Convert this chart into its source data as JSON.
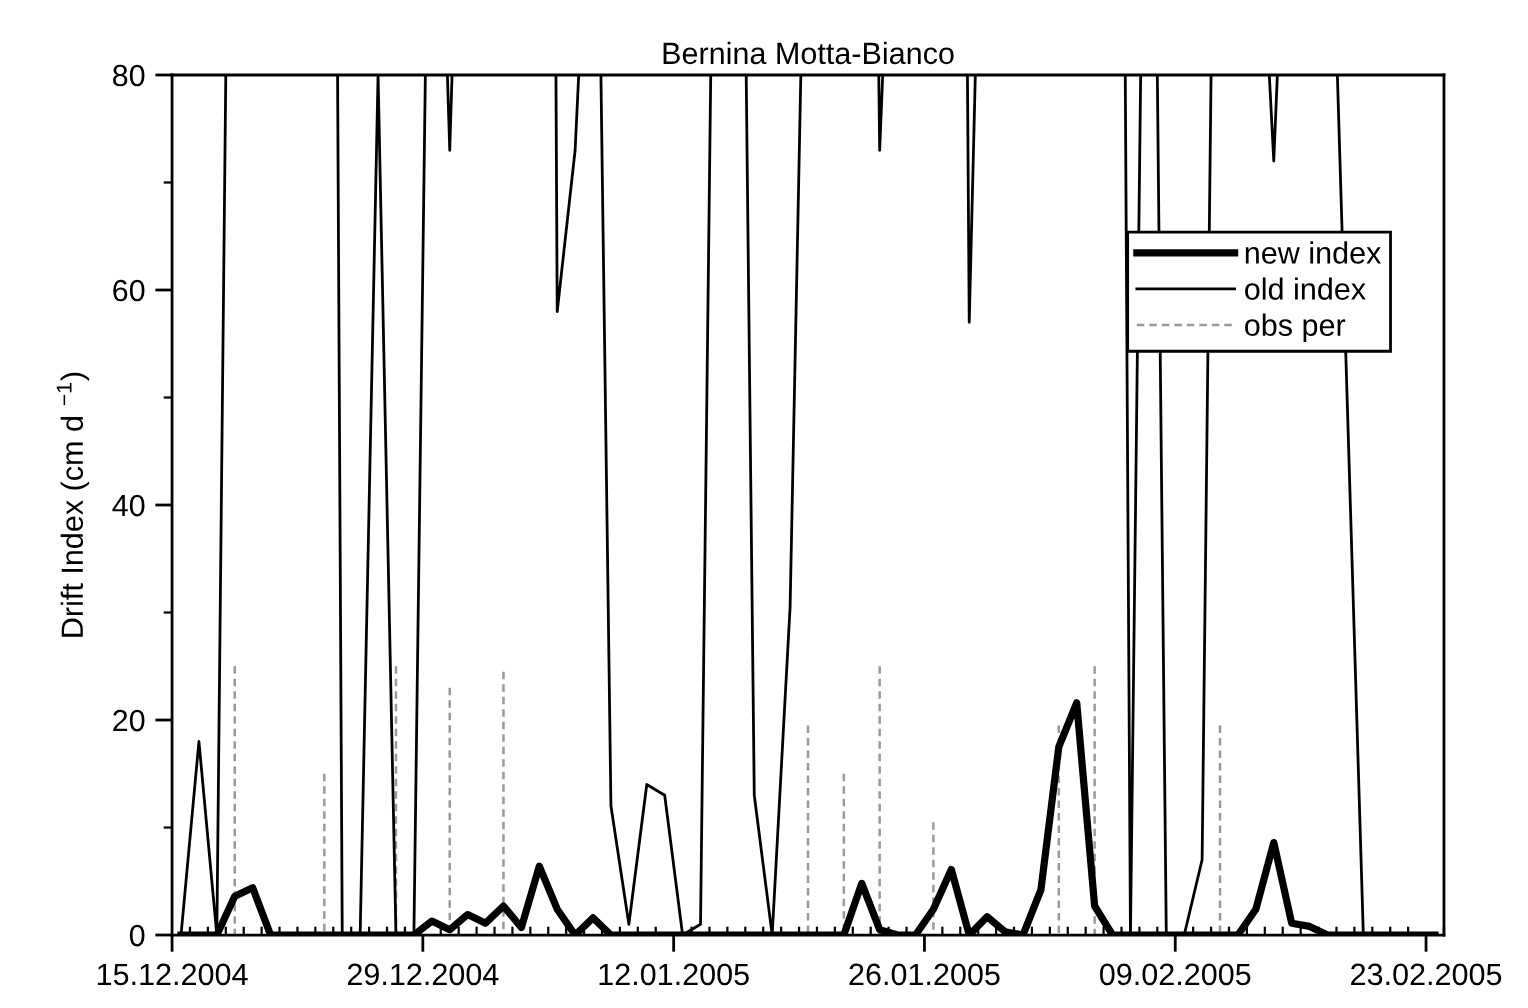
{
  "chart_data": {
    "type": "line",
    "title": "Bernina Motta-Bianco",
    "ylabel": "Drift Index (cm d $^{−1}$)",
    "xlim": [
      "2004-12-15",
      "2005-02-24"
    ],
    "ylim": [
      0,
      80
    ],
    "xticks": [
      {
        "value": "2004-12-15",
        "label": "15.12.2004"
      },
      {
        "value": "2004-12-29",
        "label": "29.12.2004"
      },
      {
        "value": "2005-01-12",
        "label": "12.01.2005"
      },
      {
        "value": "2005-01-26",
        "label": "26.01.2005"
      },
      {
        "value": "2005-02-09",
        "label": "09.02.2005"
      },
      {
        "value": "2005-02-23",
        "label": "23.02.2005"
      },
      {
        "value": "2004-12-16",
        "label": null
      },
      {
        "value": "2004-12-17",
        "label": null
      },
      {
        "value": "2004-12-18",
        "label": null
      },
      {
        "value": "2004-12-19",
        "label": null
      },
      {
        "value": "2004-12-20",
        "label": null
      },
      {
        "value": "2004-12-21",
        "label": null
      },
      {
        "value": "2004-12-22",
        "label": null
      },
      {
        "value": "2004-12-23",
        "label": null
      },
      {
        "value": "2004-12-24",
        "label": null
      },
      {
        "value": "2004-12-25",
        "label": null
      },
      {
        "value": "2004-12-26",
        "label": null
      },
      {
        "value": "2004-12-27",
        "label": null
      },
      {
        "value": "2004-12-28",
        "label": null
      },
      {
        "value": "2004-12-30",
        "label": null
      },
      {
        "value": "2004-12-31",
        "label": null
      },
      {
        "value": "2005-01-01",
        "label": null
      },
      {
        "value": "2005-01-02",
        "label": null
      },
      {
        "value": "2005-01-03",
        "label": null
      },
      {
        "value": "2005-01-04",
        "label": null
      },
      {
        "value": "2005-01-05",
        "label": null
      },
      {
        "value": "2005-01-06",
        "label": null
      },
      {
        "value": "2005-01-07",
        "label": null
      },
      {
        "value": "2005-01-08",
        "label": null
      },
      {
        "value": "2005-01-09",
        "label": null
      },
      {
        "value": "2005-01-10",
        "label": null
      },
      {
        "value": "2005-01-11",
        "label": null
      },
      {
        "value": "2005-01-13",
        "label": null
      },
      {
        "value": "2005-01-14",
        "label": null
      },
      {
        "value": "2005-01-15",
        "label": null
      },
      {
        "value": "2005-01-16",
        "label": null
      },
      {
        "value": "2005-01-17",
        "label": null
      },
      {
        "value": "2005-01-18",
        "label": null
      },
      {
        "value": "2005-01-19",
        "label": null
      },
      {
        "value": "2005-01-20",
        "label": null
      },
      {
        "value": "2005-01-21",
        "label": null
      },
      {
        "value": "2005-01-22",
        "label": null
      },
      {
        "value": "2005-01-23",
        "label": null
      },
      {
        "value": "2005-01-24",
        "label": null
      },
      {
        "value": "2005-01-25",
        "label": null
      },
      {
        "value": "2005-01-27",
        "label": null
      },
      {
        "value": "2005-01-28",
        "label": null
      },
      {
        "value": "2005-01-29",
        "label": null
      },
      {
        "value": "2005-01-30",
        "label": null
      },
      {
        "value": "2005-01-31",
        "label": null
      },
      {
        "value": "2005-02-01",
        "label": null
      },
      {
        "value": "2005-02-02",
        "label": null
      },
      {
        "value": "2005-02-03",
        "label": null
      },
      {
        "value": "2005-02-04",
        "label": null
      },
      {
        "value": "2005-02-05",
        "label": null
      },
      {
        "value": "2005-02-06",
        "label": null
      },
      {
        "value": "2005-02-07",
        "label": null
      },
      {
        "value": "2005-02-08",
        "label": null
      },
      {
        "value": "2005-02-10",
        "label": null
      },
      {
        "value": "2005-02-11",
        "label": null
      },
      {
        "value": "2005-02-12",
        "label": null
      },
      {
        "value": "2005-02-13",
        "label": null
      },
      {
        "value": "2005-02-14",
        "label": null
      },
      {
        "value": "2005-02-15",
        "label": null
      },
      {
        "value": "2005-02-16",
        "label": null
      },
      {
        "value": "2005-02-17",
        "label": null
      },
      {
        "value": "2005-02-18",
        "label": null
      },
      {
        "value": "2005-02-19",
        "label": null
      },
      {
        "value": "2005-02-20",
        "label": null
      },
      {
        "value": "2005-02-21",
        "label": null
      },
      {
        "value": "2005-02-22",
        "label": null
      },
      {
        "value": "2005-02-24",
        "label": null
      }
    ],
    "yticks": [
      0,
      20,
      40,
      60,
      80,
      {
        "value": 10,
        "label": null
      },
      {
        "value": 30,
        "label": null
      },
      {
        "value": 50,
        "label": null
      },
      {
        "value": 70,
        "label": null
      }
    ],
    "grid": false,
    "legend": "top right",
    "marker": "none",
    "series": [
      {
        "name": "new index",
        "color": "#000000",
        "line_style": "solid",
        "x": [
          "2004-12-15T12:00",
          "2004-12-16T12:00",
          "2004-12-17T12:00",
          "2004-12-18T12:00",
          "2004-12-19T12:00",
          "2004-12-20T12:00",
          "2004-12-21T12:00",
          "2004-12-22T12:00",
          "2004-12-23T12:00",
          "2004-12-24T12:00",
          "2004-12-25T12:00",
          "2004-12-26T12:00",
          "2004-12-27T12:00",
          "2004-12-28T12:00",
          "2004-12-29T12:00",
          "2004-12-30T12:00",
          "2004-12-31T12:00",
          "2005-01-01T12:00",
          "2005-01-02T12:00",
          "2005-01-03T12:00",
          "2005-01-04T12:00",
          "2005-01-05T12:00",
          "2005-01-06T12:00",
          "2005-01-07T12:00",
          "2005-01-08T12:00",
          "2005-01-09T12:00",
          "2005-01-10T12:00",
          "2005-01-11T12:00",
          "2005-01-12T12:00",
          "2005-01-13T12:00",
          "2005-01-14T12:00",
          "2005-01-15T12:00",
          "2005-01-16T12:00",
          "2005-01-17T12:00",
          "2005-01-18T12:00",
          "2005-01-19T12:00",
          "2005-01-20T12:00",
          "2005-01-21T12:00",
          "2005-01-22T12:00",
          "2005-01-23T12:00",
          "2005-01-24T12:00",
          "2005-01-25T12:00",
          "2005-01-26T12:00",
          "2005-01-27T12:00",
          "2005-01-28T12:00",
          "2005-01-29T12:00",
          "2005-01-30T12:00",
          "2005-01-31T12:00",
          "2005-02-01T12:00",
          "2005-02-02T12:00",
          "2005-02-03T12:00",
          "2005-02-04T12:00",
          "2005-02-05T12:00",
          "2005-02-06T12:00",
          "2005-02-07T12:00",
          "2005-02-08T12:00",
          "2005-02-09T12:00",
          "2005-02-10T12:00",
          "2005-02-11T12:00",
          "2005-02-12T12:00",
          "2005-02-13T12:00",
          "2005-02-14T12:00",
          "2005-02-15T12:00",
          "2005-02-16T12:00",
          "2005-02-17T12:00",
          "2005-02-18T12:00",
          "2005-02-19T12:00",
          "2005-02-20T12:00",
          "2005-02-21T12:00",
          "2005-02-22T12:00",
          "2005-02-23T12:00"
        ],
        "values": [
          0,
          0,
          0,
          3.6,
          4.4,
          0,
          0,
          0,
          0,
          0,
          0,
          0,
          0,
          0,
          1.3,
          0.5,
          1.9,
          1.1,
          2.7,
          0.7,
          6.4,
          2.4,
          0,
          1.6,
          0,
          0,
          0,
          0,
          0,
          0,
          0,
          0,
          0,
          0,
          0,
          0,
          0,
          0,
          4.8,
          0.5,
          0,
          0,
          2.4,
          6.1,
          0,
          1.7,
          0.3,
          0,
          4.2,
          17.5,
          21.6,
          2.7,
          0,
          0,
          0,
          0,
          0,
          0,
          0,
          0,
          2.4,
          8.6,
          1.1,
          0.8,
          0,
          0,
          0,
          0,
          0,
          0,
          0
        ]
      },
      {
        "name": "old index",
        "color": "#000000",
        "line_style": "solid",
        "x": [
          "2004-12-15T12:00",
          "2004-12-16T12:00",
          "2004-12-17T12:00",
          "2004-12-18T00:00",
          null,
          "2004-12-24T05:46",
          "2004-12-24T12:00",
          "2004-12-25T12:00",
          "2004-12-26T12:00",
          "2004-12-27T12:00",
          "2004-12-28T12:00",
          "2004-12-29T03:22",
          null,
          "2004-12-30T08:53",
          "2004-12-30T12:00",
          "2004-12-30T15:07",
          null,
          "2005-01-05T10:19",
          "2005-01-05T12:00",
          "2005-01-06T12:00",
          "2005-01-06T16:48",
          null,
          "2005-01-07T22:34",
          "2005-01-08T12:00",
          "2005-01-09T12:00",
          "2005-01-10T12:00",
          "2005-01-11T12:00",
          "2005-01-12T12:00",
          "2005-01-13T12:00",
          "2005-01-14T01:41",
          null,
          "2005-01-16T01:12",
          "2005-01-16T12:00",
          "2005-01-17T12:00",
          "2005-01-18T12:00",
          "2005-01-19T02:24",
          null,
          "2005-01-23T10:48",
          "2005-01-23T12:00",
          "2005-01-23T16:05",
          null,
          "2005-01-28T09:36",
          "2005-01-28T12:00",
          "2005-01-28T20:10",
          null,
          "2005-02-06T05:02",
          "2005-02-06T12:00",
          "2005-02-07T01:41",
          null,
          "2005-02-08T00:00",
          "2005-02-08T12:00",
          "2005-02-09T12:00",
          "2005-02-10T12:00",
          "2005-02-11T00:00",
          null,
          "2005-02-14T06:00",
          "2005-02-14T12:00",
          "2005-02-14T16:48",
          null,
          "2005-02-18T01:12",
          "2005-02-19T12:00",
          "2005-02-20T12:00",
          "2005-02-21T12:00",
          "2005-02-22T12:00",
          "2005-02-23T12:00"
        ],
        "values": [
          0,
          18,
          0,
          80,
          null,
          80,
          0,
          0,
          80,
          0,
          0,
          80,
          null,
          80,
          73,
          80,
          null,
          80,
          58,
          73,
          80,
          null,
          80,
          12,
          1,
          14,
          13,
          0,
          1,
          80,
          null,
          80,
          13,
          0,
          30.5,
          80,
          null,
          80,
          73,
          80,
          null,
          80,
          57,
          80,
          null,
          80,
          0,
          80,
          null,
          80,
          0,
          0,
          7,
          80,
          null,
          80,
          72,
          80,
          null,
          80,
          0,
          0,
          0,
          0,
          0
        ]
      },
      {
        "name": "obs per",
        "color": "#999999",
        "line_style": "dashed",
        "x": [
          "2004-12-18T12:00",
          "2004-12-18T12:00",
          null,
          "2004-12-23T12:00",
          "2004-12-23T12:00",
          null,
          "2004-12-27T12:00",
          "2004-12-27T12:00",
          null,
          "2004-12-30T12:00",
          "2004-12-30T12:00",
          null,
          "2005-01-02T12:00",
          "2005-01-02T12:00",
          null,
          "2005-01-19T12:00",
          "2005-01-19T12:00",
          null,
          "2005-01-21T12:00",
          "2005-01-21T12:00",
          null,
          "2005-01-23T12:00",
          "2005-01-23T12:00",
          null,
          "2005-01-26T12:00",
          "2005-01-26T12:00",
          null,
          "2005-02-02T12:00",
          "2005-02-02T12:00",
          null,
          "2005-02-04T12:00",
          "2005-02-04T12:00",
          null,
          "2005-02-11T12:00",
          "2005-02-11T12:00",
          null
        ],
        "values": [
          25,
          0,
          null,
          15,
          0,
          null,
          25,
          0,
          null,
          23,
          0,
          null,
          24.5,
          0,
          null,
          19.5,
          0,
          null,
          15,
          0,
          null,
          25,
          0,
          null,
          10.5,
          0,
          null,
          19.5,
          0,
          null,
          25,
          0,
          null,
          19.5,
          0,
          null
        ]
      }
    ]
  }
}
